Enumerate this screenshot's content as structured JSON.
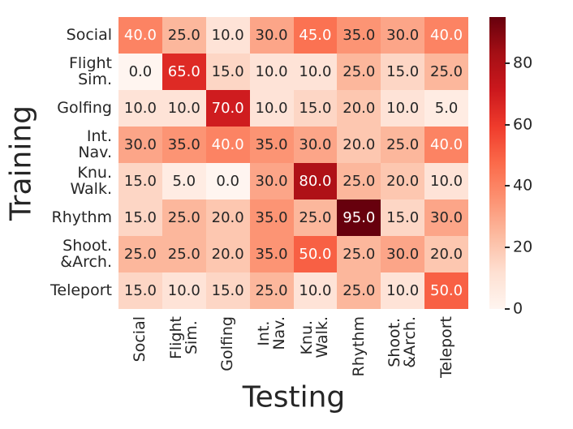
{
  "chart_data": {
    "type": "heatmap",
    "title": "",
    "xlabel": "Testing",
    "ylabel": "Training",
    "categories": [
      "Social",
      "Flight\nSim.",
      "Golfing",
      "Int.\nNav.",
      "Knu.\nWalk.",
      "Rhythm",
      "Shoot.\n&Arch.",
      "Teleport"
    ],
    "matrix": [
      [
        40.0,
        25.0,
        10.0,
        30.0,
        45.0,
        35.0,
        30.0,
        40.0
      ],
      [
        0.0,
        65.0,
        15.0,
        10.0,
        10.0,
        25.0,
        15.0,
        25.0
      ],
      [
        10.0,
        10.0,
        70.0,
        10.0,
        15.0,
        20.0,
        10.0,
        5.0
      ],
      [
        30.0,
        35.0,
        40.0,
        35.0,
        30.0,
        20.0,
        25.0,
        40.0
      ],
      [
        15.0,
        5.0,
        0.0,
        30.0,
        80.0,
        25.0,
        20.0,
        10.0
      ],
      [
        15.0,
        25.0,
        20.0,
        35.0,
        25.0,
        95.0,
        15.0,
        30.0
      ],
      [
        25.0,
        25.0,
        20.0,
        35.0,
        50.0,
        25.0,
        30.0,
        20.0
      ],
      [
        15.0,
        10.0,
        15.0,
        25.0,
        10.0,
        25.0,
        10.0,
        50.0
      ]
    ],
    "value_format_decimals": 1,
    "vmin": 0,
    "vmax": 95,
    "colormap": "Reds",
    "colormap_stops": [
      "#fff5f0",
      "#fee0d2",
      "#fcbba1",
      "#fc9272",
      "#fb6a4a",
      "#ef3b2c",
      "#cb181d",
      "#a50f15",
      "#67000d"
    ],
    "colorbar_ticks": [
      "0",
      "20",
      "40",
      "60",
      "80"
    ],
    "annotation_dark_color": "#262626",
    "annotation_light_color": "#ffffff",
    "legend_position": "right-colorbar",
    "grid": false
  }
}
